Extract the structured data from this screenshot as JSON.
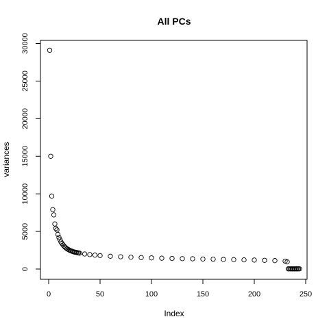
{
  "chart_data": {
    "type": "scatter",
    "title": "All PCs",
    "xlabel": "Index",
    "ylabel": "variances",
    "xlim": [
      1,
      244
    ],
    "ylim": [
      0,
      30000
    ],
    "x_ticks": [
      0,
      50,
      100,
      150,
      200,
      250
    ],
    "y_ticks": [
      0,
      5000,
      10000,
      15000,
      20000,
      25000,
      30000
    ],
    "grid": false,
    "marker": "open-circle",
    "colors": {
      "points": "#000000",
      "axes": "#000000",
      "background": "#ffffff"
    },
    "series": [
      {
        "x": [
          1,
          2,
          3,
          4,
          5,
          6,
          7,
          8,
          9,
          10,
          11,
          12,
          13,
          14,
          15,
          16,
          17,
          18,
          19,
          20,
          21,
          22,
          23,
          24,
          25,
          26,
          27,
          28,
          29,
          30,
          35,
          40,
          45,
          50,
          60,
          70,
          80,
          90,
          100,
          110,
          120,
          130,
          140,
          150,
          160,
          170,
          180,
          190,
          200,
          210,
          220,
          230,
          232,
          233,
          234,
          235,
          236,
          237,
          238,
          239,
          240,
          241,
          242,
          243,
          244
        ],
        "values": [
          29100,
          15000,
          9700,
          7900,
          7200,
          6000,
          5400,
          5200,
          4600,
          4200,
          3900,
          3600,
          3400,
          3200,
          3050,
          2900,
          2780,
          2680,
          2600,
          2520,
          2450,
          2400,
          2350,
          2300,
          2260,
          2230,
          2200,
          2170,
          2140,
          2110,
          2000,
          1920,
          1850,
          1790,
          1700,
          1630,
          1570,
          1520,
          1480,
          1440,
          1410,
          1380,
          1360,
          1330,
          1310,
          1280,
          1250,
          1220,
          1190,
          1160,
          1120,
          1050,
          950,
          20,
          20,
          20,
          20,
          20,
          20,
          20,
          20,
          20,
          20,
          20,
          20
        ]
      }
    ]
  }
}
